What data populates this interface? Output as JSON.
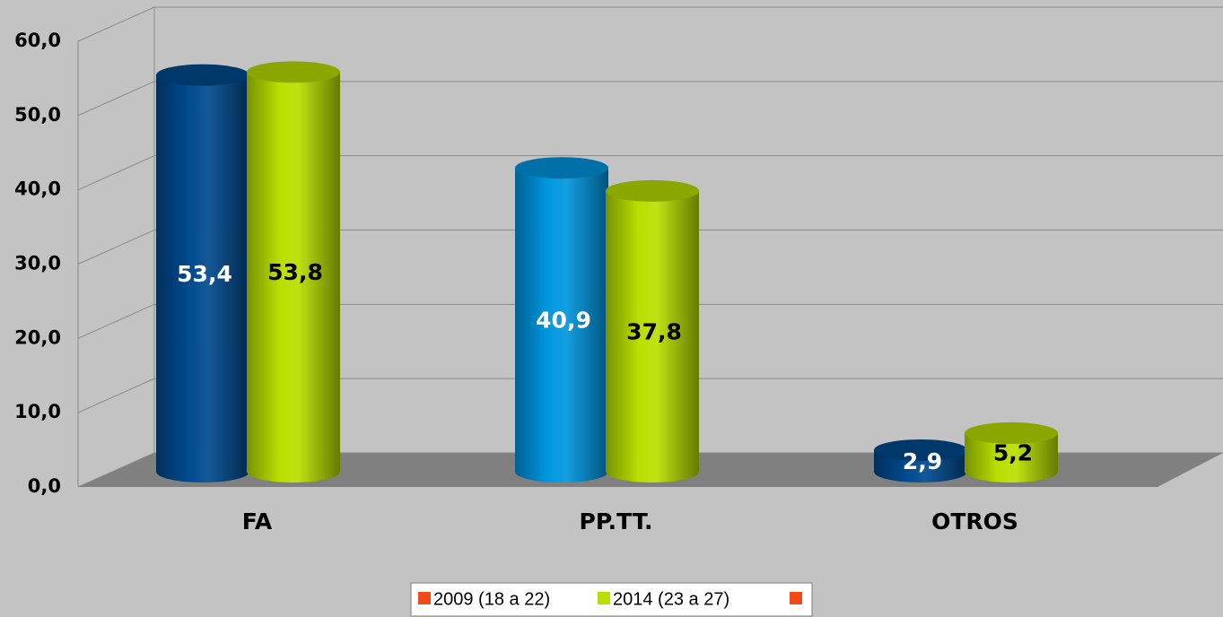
{
  "chart_data": {
    "type": "cylinder-bar",
    "categories": [
      "FA",
      "PP.TT.",
      "OTROS"
    ],
    "series": [
      {
        "name": "2009 (18 a 22)",
        "color": "#f04a1a",
        "bar_colors": [
          "#004a8f",
          "#0097e0",
          "#004a8f"
        ],
        "label_color": "#ffffff",
        "values": [
          53.4,
          40.9,
          2.9
        ],
        "value_labels": [
          "53,4",
          "40,9",
          "2,9"
        ]
      },
      {
        "name": "2014 (23 a 27)",
        "color": "#b8df00",
        "bar_colors": [
          "#b8df00",
          "#b8df00",
          "#b8df00"
        ],
        "label_color": "#000000",
        "values": [
          53.8,
          37.8,
          5.2
        ],
        "value_labels": [
          "53,8",
          "37,8",
          "5,2"
        ]
      }
    ],
    "ylim": [
      0,
      60
    ],
    "yticks": [
      {
        "value": 0,
        "label": "0,0"
      },
      {
        "value": 10,
        "label": "10,0"
      },
      {
        "value": 20,
        "label": "20,0"
      },
      {
        "value": 30,
        "label": "30,0"
      },
      {
        "value": 40,
        "label": "40,0"
      },
      {
        "value": 50,
        "label": "50,0"
      },
      {
        "value": 60,
        "label": "60,0"
      }
    ],
    "grid": true,
    "legend": "bottom"
  }
}
